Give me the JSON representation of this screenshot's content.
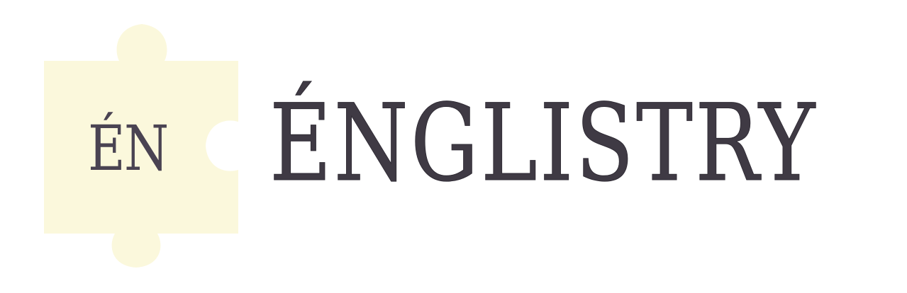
{
  "logo": {
    "puzzle_text": "ÉN",
    "wordmark": "ÉNGLISTRY"
  },
  "colors": {
    "puzzle_fill": "#fbf8dc",
    "text": "#3f3a44",
    "background": "#ffffff"
  },
  "icon": "puzzle-piece-icon"
}
